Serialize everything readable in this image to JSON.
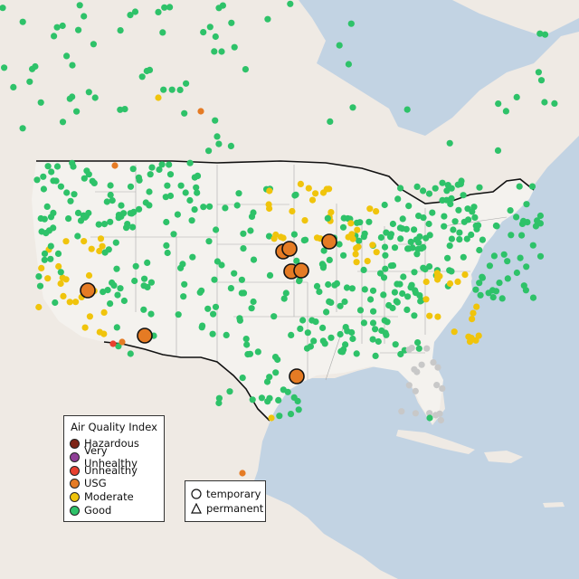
{
  "legend": {
    "title": "Air Quality Index",
    "categories": [
      {
        "label": "Hazardous",
        "color": "#7e2416"
      },
      {
        "label": "Very Unhealthy",
        "color": "#8f3f97"
      },
      {
        "label": "Unhealthy",
        "color": "#e8402f"
      },
      {
        "label": "USG",
        "color": "#e57b24"
      },
      {
        "label": "Moderate",
        "color": "#f0c40c"
      },
      {
        "label": "Good",
        "color": "#2ec269"
      }
    ],
    "monitor_types": [
      {
        "label": "temporary",
        "symbol": "circle"
      },
      {
        "label": "permanent",
        "symbol": "triangle"
      }
    ]
  },
  "colors": {
    "water": "#c2d3e3",
    "land": "#efeae4",
    "us_land": "#f4f2ee",
    "border": "#111111",
    "state_line": "#aaaaaa",
    "no_data": "#c8c8c8"
  },
  "large_monitors": [
    {
      "category": "USG",
      "type": "temporary",
      "place": "Sierra Nevada, CA"
    },
    {
      "category": "USG",
      "type": "temporary",
      "place": "Phoenix, AZ"
    },
    {
      "category": "USG",
      "type": "temporary",
      "place": "Sioux Falls, SD"
    },
    {
      "category": "USG",
      "type": "temporary",
      "place": "Sioux Falls, SD"
    },
    {
      "category": "USG",
      "type": "temporary",
      "place": "Minneapolis, MN"
    },
    {
      "category": "USG",
      "type": "temporary",
      "place": "Omaha, NE"
    },
    {
      "category": "USG",
      "type": "temporary",
      "place": "Omaha, NE"
    },
    {
      "category": "USG",
      "type": "temporary",
      "place": "Houston, TX"
    }
  ]
}
